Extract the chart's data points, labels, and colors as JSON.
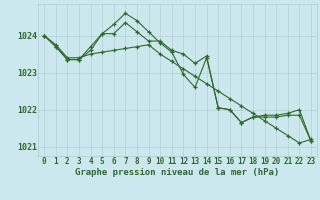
{
  "xlabel": "Graphe pression niveau de la mer (hPa)",
  "hours": [
    0,
    1,
    2,
    3,
    4,
    5,
    6,
    7,
    8,
    9,
    10,
    11,
    12,
    13,
    14,
    15,
    16,
    17,
    18,
    19,
    20,
    21,
    22,
    23
  ],
  "series1": [
    1024.0,
    1023.75,
    1023.4,
    1023.4,
    1023.5,
    1023.55,
    1023.6,
    1023.65,
    1023.7,
    1023.75,
    1023.5,
    1023.3,
    1023.1,
    1022.9,
    1022.7,
    1022.5,
    1022.3,
    1022.1,
    1021.9,
    1021.7,
    1021.5,
    1021.3,
    1021.1,
    1021.2
  ],
  "series2": [
    1024.0,
    1023.7,
    1023.35,
    1023.35,
    1023.7,
    1024.05,
    1024.3,
    1024.6,
    1024.4,
    1024.1,
    1023.8,
    1023.55,
    1022.95,
    1022.6,
    1023.4,
    1022.05,
    1022.0,
    1021.65,
    1021.8,
    1021.85,
    1021.85,
    1021.9,
    1022.0,
    1021.15
  ],
  "series3": [
    1024.0,
    1023.7,
    1023.35,
    1023.35,
    1023.6,
    1024.05,
    1024.05,
    1024.35,
    1024.1,
    1023.85,
    1023.85,
    1023.6,
    1023.5,
    1023.25,
    1023.45,
    1022.05,
    1022.0,
    1021.65,
    1021.8,
    1021.8,
    1021.8,
    1021.85,
    1021.85,
    1021.15
  ],
  "line_color": "#2d6a2d",
  "bg_color": "#cce8ee",
  "grid_color": "#aacccc",
  "ylim_min": 1020.75,
  "ylim_max": 1024.85,
  "yticks": [
    1021,
    1022,
    1023,
    1024
  ],
  "xlabel_fontsize": 6.5,
  "tick_fontsize": 5.5
}
